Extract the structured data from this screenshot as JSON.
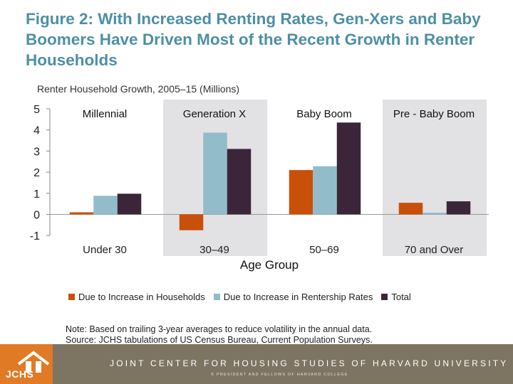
{
  "title": "Figure 2: With Increased Renting Rates, Gen-Xers and Baby Boomers Have Driven Most of the Recent Growth in Renter Households",
  "chart_data": {
    "type": "bar",
    "subtitle": "Renter Household Growth, 2005–15  (Millions)",
    "categories": [
      "Under 30",
      "30–49",
      "50–69",
      "70 and Over"
    ],
    "group_labels": [
      "Millennial",
      "Generation X",
      "Baby Boom",
      "Pre - Baby Boom"
    ],
    "shaded_groups": [
      false,
      true,
      false,
      true
    ],
    "xlabel": "Age Group",
    "ylabel": "",
    "ylim": [
      -1,
      5
    ],
    "yticks": [
      5,
      4,
      3,
      2,
      1,
      0,
      -1
    ],
    "series": [
      {
        "name": "Due to Increase in Households",
        "color": "#c9500a",
        "values": [
          0.1,
          -0.75,
          2.1,
          0.55
        ]
      },
      {
        "name": "Due to Increase in Rentership Rates",
        "color": "#93bccb",
        "values": [
          0.88,
          3.87,
          2.28,
          0.08
        ]
      },
      {
        "name": "Total",
        "color": "#3b2639",
        "values": [
          0.98,
          3.1,
          4.35,
          0.62
        ]
      }
    ],
    "legend_position": "bottom"
  },
  "note": {
    "line1": "Note: Based on trailing 3-year averages to reduce volatility in the annual data.",
    "line2": "Source: JCHS tabulations of US Census Bureau,  Current Population Surveys."
  },
  "footer": {
    "logo": "JCHS",
    "org": "JOINT CENTER FOR HOUSING STUDIES OF HARVARD UNIVERSITY",
    "copyright": "© PRESIDENT AND FELLOWS OF HARVARD COLLEGE"
  },
  "colors": {
    "title": "#4d8fa6",
    "shade": "#e2e1e4",
    "footer": "#7d7462",
    "logo": "#e07a25"
  }
}
